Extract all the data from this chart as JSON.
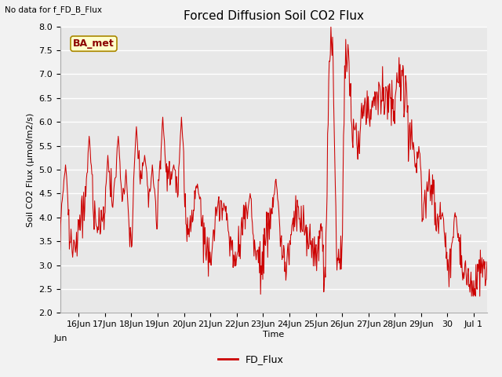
{
  "title": "Forced Diffusion Soil CO2 Flux",
  "ylabel": "Soil CO2 Flux (μmol/m2/s)",
  "xlabel": "Time",
  "top_left_text": "No data for f_FD_B_Flux",
  "legend_label": "FD_Flux",
  "line_color": "#cc0000",
  "plot_bg_color": "#e8e8e8",
  "fig_bg_color": "#f2f2f2",
  "ylim": [
    2.0,
    8.0
  ],
  "yticks": [
    2.0,
    2.5,
    3.0,
    3.5,
    4.0,
    4.5,
    5.0,
    5.5,
    6.0,
    6.5,
    7.0,
    7.5,
    8.0
  ],
  "annotation_box_text": "BA_met",
  "annotation_box_color": "#ffffcc",
  "annotation_box_edge_color": "#aa8800",
  "grid_color": "#ffffff",
  "title_fontsize": 11,
  "label_fontsize": 8,
  "tick_fontsize": 8
}
